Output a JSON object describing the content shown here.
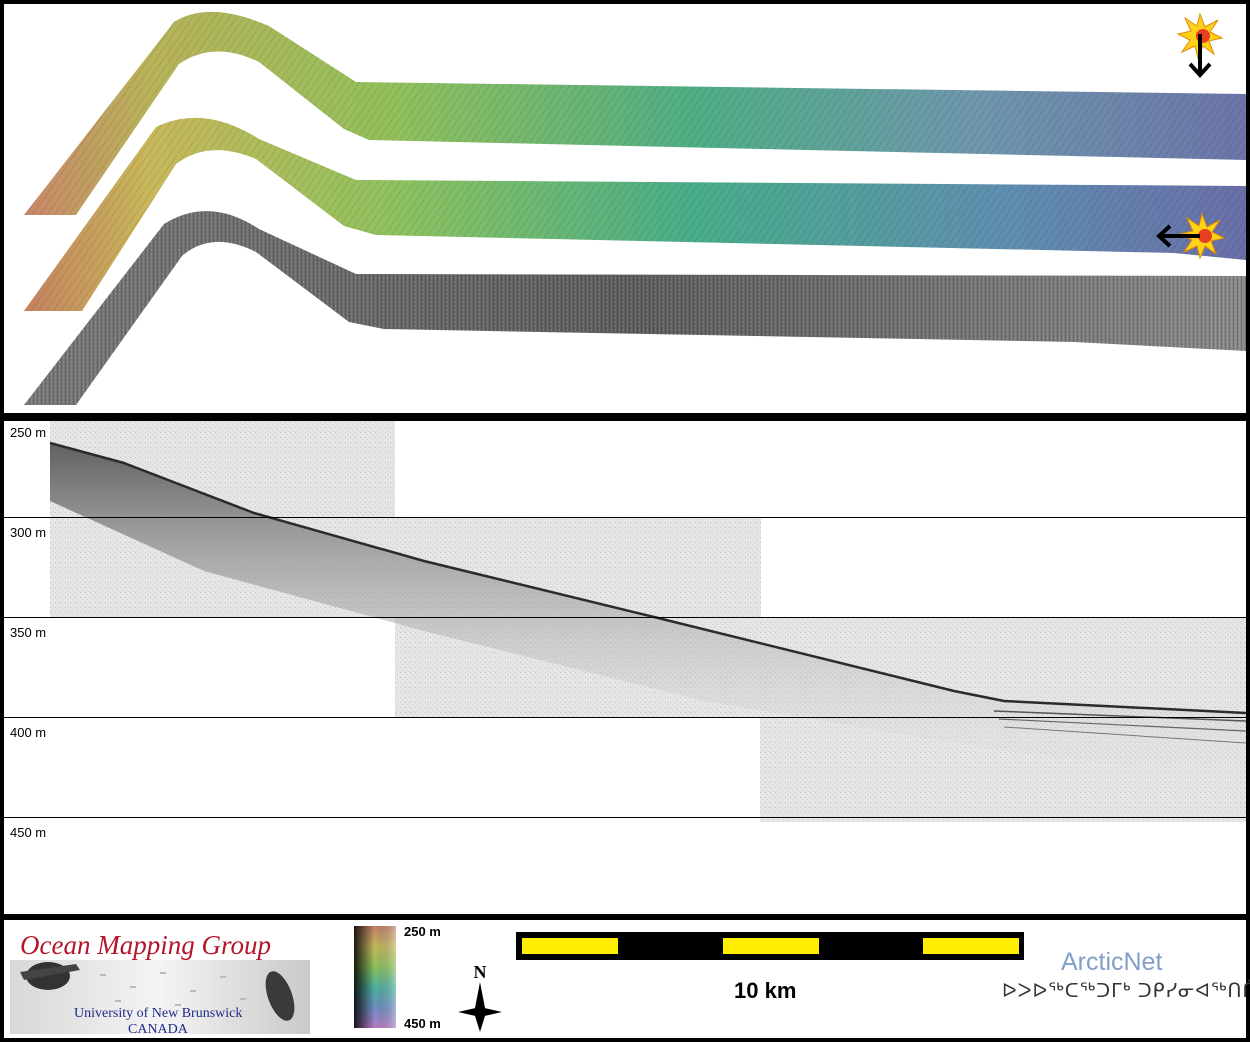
{
  "profile": {
    "depth_labels": [
      "250 m",
      "300 m",
      "350 m",
      "400 m",
      "450 m"
    ]
  },
  "footer": {
    "logo_title": "Ocean Mapping Group",
    "logo_university": "University of New Brunswick",
    "logo_country": "CANADA",
    "colorbar_top": "250 m",
    "colorbar_bottom": "450 m",
    "north_label": "N",
    "scale_label": "10 km",
    "arcticnet_name": "ArcticNet",
    "arcticnet_syllabics": "ᐅᐳᐅᖅᑕᖅᑐᒥᒃ ᑐᑭᓯᓂᐊᖅᑎᒌᑦ"
  },
  "colors": {
    "scale_yellow": "#ffee00",
    "scale_black": "#000000",
    "logo_red": "#b3152a",
    "logo_blue": "#1d2a8a",
    "arctic_blue": "#7f9fc9"
  },
  "icons": [
    "sun-illumination-icon",
    "arrow-down-icon",
    "arrow-left-icon",
    "north-arrow-icon"
  ]
}
